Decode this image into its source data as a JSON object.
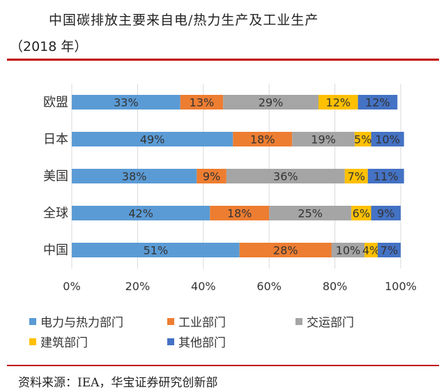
{
  "title": {
    "line1": "中国碳排放主要来自电/热力生产及工业生产",
    "line2": "（2018 年）"
  },
  "source": "资料来源：IEA，华宝证券研究创新部",
  "chart_data": {
    "type": "bar",
    "orientation": "horizontal",
    "stacked": true,
    "normalized": true,
    "categories": [
      "欧盟",
      "日本",
      "美国",
      "全球",
      "中国"
    ],
    "series": [
      {
        "name": "电力与热力部门",
        "color": "#5b9bd5",
        "values": [
          33,
          49,
          38,
          42,
          51
        ],
        "labels": [
          "33%",
          "49%",
          "38%",
          "42%",
          "51%"
        ]
      },
      {
        "name": "工业部门",
        "color": "#ed7d31",
        "values": [
          13,
          18,
          9,
          18,
          28
        ],
        "labels": [
          "13%",
          "18%",
          "9%",
          "18%",
          "28%"
        ]
      },
      {
        "name": "交运部门",
        "color": "#a5a5a5",
        "values": [
          29,
          19,
          36,
          25,
          10
        ],
        "labels": [
          "29%",
          "19%",
          "36%",
          "25%",
          "10%"
        ]
      },
      {
        "name": "建筑部门",
        "color": "#ffc000",
        "values": [
          12,
          5,
          7,
          6,
          4
        ],
        "labels": [
          "12%",
          "5%",
          "7%",
          "6%",
          "4%"
        ]
      },
      {
        "name": "其他部门",
        "color": "#4472c4",
        "values": [
          12,
          10,
          11,
          9,
          7
        ],
        "labels": [
          "12%",
          "10%",
          "11%",
          "9%",
          "7%"
        ]
      }
    ],
    "x_ticks": [
      "0%",
      "20%",
      "40%",
      "60%",
      "80%",
      "100%"
    ],
    "xlim": [
      0,
      100
    ],
    "grid": true,
    "legend_position": "bottom"
  }
}
